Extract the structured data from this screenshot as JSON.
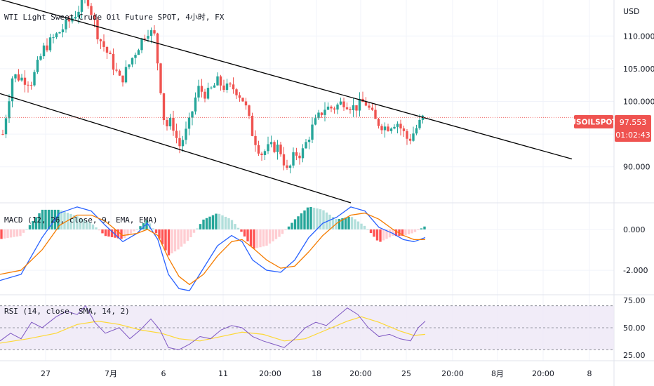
{
  "chart_data": {
    "type": "candlestick",
    "title": "WTI Light Sweet Crude Oil Future SPOT, 4小时, FX",
    "currency": "USD",
    "symbol": "USOILSPOT",
    "last_price": "97.553",
    "countdown": "01:02:43",
    "price_axis": {
      "ticks": [
        "110.000",
        "105.000",
        "100.000",
        "90.000"
      ],
      "range": [
        84.5,
        115.5
      ]
    },
    "time_axis": {
      "ticks": [
        "27",
        "7月",
        "6",
        "11",
        "20:00",
        "18",
        "20:00",
        "25",
        "20:00",
        "8月",
        "20:00",
        "8"
      ]
    },
    "price_path": [
      [
        4,
        95
      ],
      [
        18,
        104
      ],
      [
        45,
        103
      ],
      [
        62,
        108
      ],
      [
        88,
        111
      ],
      [
        105,
        113
      ],
      [
        124,
        116
      ],
      [
        140,
        110
      ],
      [
        155,
        107
      ],
      [
        172,
        103
      ],
      [
        190,
        107
      ],
      [
        210,
        111
      ],
      [
        220,
        110
      ],
      [
        228,
        103
      ],
      [
        235,
        96
      ],
      [
        245,
        97
      ],
      [
        255,
        93
      ],
      [
        268,
        96
      ],
      [
        282,
        102
      ],
      [
        295,
        101
      ],
      [
        310,
        103
      ],
      [
        322,
        102
      ],
      [
        335,
        102
      ],
      [
        348,
        100
      ],
      [
        360,
        95
      ],
      [
        372,
        92
      ],
      [
        385,
        93
      ],
      [
        398,
        93
      ],
      [
        410,
        89
      ],
      [
        420,
        92
      ],
      [
        430,
        92
      ],
      [
        445,
        96
      ],
      [
        462,
        99
      ],
      [
        475,
        99
      ],
      [
        490,
        100
      ],
      [
        505,
        99
      ],
      [
        520,
        100
      ],
      [
        535,
        97
      ],
      [
        550,
        96
      ],
      [
        565,
        97
      ],
      [
        582,
        94
      ],
      [
        594,
        96
      ],
      [
        606,
        98
      ]
    ],
    "channel_upper": [
      [
        0,
        115.6
      ],
      [
        815,
        91.2
      ]
    ],
    "channel_lower": [
      [
        0,
        101.2
      ],
      [
        500,
        84.5
      ]
    ],
    "macd": {
      "label": "MACD (12, 26, close, 9, EMA, EMA)",
      "ticks": [
        "0.000",
        "-2.000"
      ],
      "range": [
        -3.2,
        1.3
      ],
      "macd_line": [
        [
          0,
          -2.5
        ],
        [
          30,
          -2.2
        ],
        [
          60,
          -0.4
        ],
        [
          85,
          0.8
        ],
        [
          110,
          1.1
        ],
        [
          130,
          0.9
        ],
        [
          150,
          0.2
        ],
        [
          175,
          -0.6
        ],
        [
          195,
          -0.2
        ],
        [
          210,
          0.3
        ],
        [
          225,
          -0.5
        ],
        [
          240,
          -2.2
        ],
        [
          255,
          -2.9
        ],
        [
          270,
          -3.0
        ],
        [
          290,
          -1.9
        ],
        [
          310,
          -0.8
        ],
        [
          330,
          -0.3
        ],
        [
          345,
          -0.6
        ],
        [
          360,
          -1.5
        ],
        [
          380,
          -2.0
        ],
        [
          400,
          -2.1
        ],
        [
          420,
          -1.5
        ],
        [
          440,
          -0.4
        ],
        [
          460,
          0.3
        ],
        [
          480,
          0.6
        ],
        [
          500,
          1.1
        ],
        [
          520,
          0.9
        ],
        [
          540,
          0.1
        ],
        [
          560,
          -0.2
        ],
        [
          575,
          -0.5
        ],
        [
          590,
          -0.6
        ],
        [
          606,
          -0.4
        ]
      ],
      "signal_line": [
        [
          0,
          -2.2
        ],
        [
          30,
          -2.0
        ],
        [
          60,
          -1.0
        ],
        [
          85,
          0.2
        ],
        [
          110,
          0.7
        ],
        [
          130,
          0.7
        ],
        [
          150,
          0.4
        ],
        [
          175,
          -0.3
        ],
        [
          195,
          -0.2
        ],
        [
          210,
          0.0
        ],
        [
          225,
          -0.3
        ],
        [
          240,
          -1.4
        ],
        [
          255,
          -2.3
        ],
        [
          270,
          -2.7
        ],
        [
          290,
          -2.2
        ],
        [
          310,
          -1.3
        ],
        [
          330,
          -0.6
        ],
        [
          345,
          -0.5
        ],
        [
          360,
          -0.9
        ],
        [
          380,
          -1.5
        ],
        [
          400,
          -1.9
        ],
        [
          420,
          -1.8
        ],
        [
          440,
          -1.1
        ],
        [
          460,
          -0.3
        ],
        [
          480,
          0.3
        ],
        [
          500,
          0.7
        ],
        [
          520,
          0.8
        ],
        [
          540,
          0.5
        ],
        [
          560,
          0.0
        ],
        [
          575,
          -0.3
        ],
        [
          590,
          -0.5
        ],
        [
          606,
          -0.5
        ]
      ],
      "colors": {
        "macd": "#2962ff",
        "signal": "#f57c00",
        "hist_up": "#26a69a",
        "hist_up_weak": "#b2dfdb",
        "hist_down": "#ff5252",
        "hist_down_weak": "#ffcdd2"
      }
    },
    "rsi": {
      "label": "RSI (14, close, SMA, 14, 2)",
      "ticks": [
        "75.00",
        "50.00",
        "25.00"
      ],
      "range": [
        20,
        80
      ],
      "band": [
        30,
        70
      ],
      "rsi_line": [
        [
          0,
          38
        ],
        [
          15,
          45
        ],
        [
          30,
          40
        ],
        [
          45,
          55
        ],
        [
          60,
          50
        ],
        [
          80,
          60
        ],
        [
          95,
          65
        ],
        [
          110,
          62
        ],
        [
          122,
          70
        ],
        [
          135,
          55
        ],
        [
          150,
          45
        ],
        [
          170,
          50
        ],
        [
          185,
          40
        ],
        [
          200,
          48
        ],
        [
          215,
          58
        ],
        [
          228,
          48
        ],
        [
          240,
          32
        ],
        [
          255,
          30
        ],
        [
          270,
          35
        ],
        [
          285,
          42
        ],
        [
          300,
          40
        ],
        [
          315,
          48
        ],
        [
          330,
          52
        ],
        [
          345,
          50
        ],
        [
          360,
          42
        ],
        [
          375,
          38
        ],
        [
          390,
          35
        ],
        [
          405,
          32
        ],
        [
          420,
          40
        ],
        [
          435,
          50
        ],
        [
          450,
          55
        ],
        [
          465,
          52
        ],
        [
          480,
          60
        ],
        [
          495,
          68
        ],
        [
          510,
          62
        ],
        [
          525,
          50
        ],
        [
          540,
          42
        ],
        [
          555,
          44
        ],
        [
          570,
          40
        ],
        [
          585,
          38
        ],
        [
          596,
          50
        ],
        [
          606,
          56
        ]
      ],
      "ma_line": [
        [
          0,
          36
        ],
        [
          40,
          40
        ],
        [
          80,
          45
        ],
        [
          110,
          53
        ],
        [
          140,
          56
        ],
        [
          170,
          53
        ],
        [
          200,
          48
        ],
        [
          230,
          45
        ],
        [
          255,
          40
        ],
        [
          285,
          38
        ],
        [
          315,
          42
        ],
        [
          345,
          46
        ],
        [
          375,
          44
        ],
        [
          405,
          38
        ],
        [
          435,
          40
        ],
        [
          465,
          48
        ],
        [
          495,
          56
        ],
        [
          515,
          60
        ],
        [
          540,
          55
        ],
        [
          570,
          47
        ],
        [
          590,
          43
        ],
        [
          606,
          44
        ]
      ],
      "colors": {
        "rsi": "#7e57c2",
        "ma": "#fdd835",
        "band": "#ede7f6"
      }
    },
    "colors": {
      "up": "#26a69a",
      "down": "#ef5350",
      "channel": "#000000",
      "price_line": "#ef5350"
    }
  }
}
